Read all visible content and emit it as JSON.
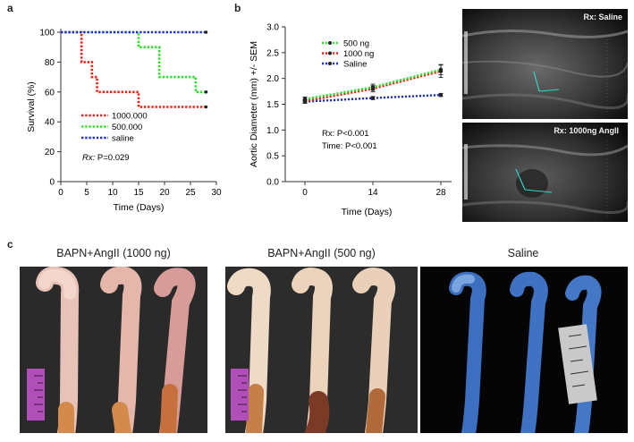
{
  "panels": {
    "a": {
      "letter": "a"
    },
    "b": {
      "letter": "b"
    },
    "c": {
      "letter": "c"
    }
  },
  "chart_data": [
    {
      "type": "line",
      "id": "a",
      "xlabel": "Time (Days)",
      "ylabel": "Survival (%)",
      "xlim": [
        0,
        30
      ],
      "ylim": [
        0,
        100
      ],
      "xticks": [
        0,
        5,
        10,
        15,
        20,
        25,
        30
      ],
      "yticks": [
        0,
        20,
        40,
        60,
        80,
        100
      ],
      "step": true,
      "annotation": {
        "prefix": "Rx: ",
        "text": "P=0.029"
      },
      "legend_position": "lower-left",
      "series": [
        {
          "name": "1000.000",
          "color": "#e8231a",
          "x": [
            0,
            4,
            4,
            6,
            6,
            7,
            7,
            15,
            15,
            28
          ],
          "y": [
            100,
            100,
            80,
            80,
            70,
            70,
            60,
            60,
            50,
            50
          ]
        },
        {
          "name": "500.000",
          "color": "#2fe02f",
          "x": [
            0,
            15,
            15,
            19,
            19,
            26,
            26,
            28
          ],
          "y": [
            100,
            100,
            90,
            90,
            70,
            70,
            60,
            60
          ]
        },
        {
          "name": "saline",
          "color": "#1e2fd8",
          "x": [
            0,
            28
          ],
          "y": [
            100,
            100
          ]
        }
      ]
    },
    {
      "type": "line",
      "id": "b",
      "xlabel": "Time (Days)",
      "ylabel": "Aortic Diameter (mm) +/- SEM",
      "xlim": [
        0,
        28
      ],
      "ylim": [
        0,
        3.0
      ],
      "xticks": [
        0,
        14,
        28
      ],
      "yticks": [
        0,
        0.5,
        1.0,
        1.5,
        2.0,
        2.5,
        3.0
      ],
      "ytick_labels": [
        "0.0",
        "0.5",
        "1.0",
        "1.5",
        "2.0",
        "2.5",
        "3.0"
      ],
      "annotations": [
        "Rx: P<0.001",
        "Time: P<0.001"
      ],
      "legend_position": "top-left",
      "series": [
        {
          "name": "500 ng",
          "color": "#2fe02f",
          "x": [
            0,
            14,
            28
          ],
          "y": [
            1.6,
            1.83,
            2.17
          ],
          "err": [
            0.04,
            0.06,
            0.1
          ]
        },
        {
          "name": "1000 ng",
          "color": "#e8231a",
          "x": [
            0,
            14,
            28
          ],
          "y": [
            1.56,
            1.8,
            2.14
          ],
          "err": [
            0.04,
            0.06,
            0.12
          ]
        },
        {
          "name": "Saline",
          "color": "#1e2fd8",
          "x": [
            0,
            14,
            28
          ],
          "y": [
            1.55,
            1.62,
            1.68
          ],
          "err": [
            0.03,
            0.03,
            0.03
          ]
        }
      ]
    }
  ],
  "ultrasound": [
    {
      "label": "Rx: Saline"
    },
    {
      "label": "Rx: 1000ng AngII"
    }
  ],
  "photos": [
    {
      "label": "BAPN+AngII (1000 ng)",
      "background": "#2a2a2a",
      "tissue": "pink"
    },
    {
      "label": "BAPN+AngII (500 ng)",
      "background": "#2c2c2c",
      "tissue": "beige"
    },
    {
      "label": "Saline",
      "background": "#050505",
      "tissue": "blue"
    }
  ]
}
